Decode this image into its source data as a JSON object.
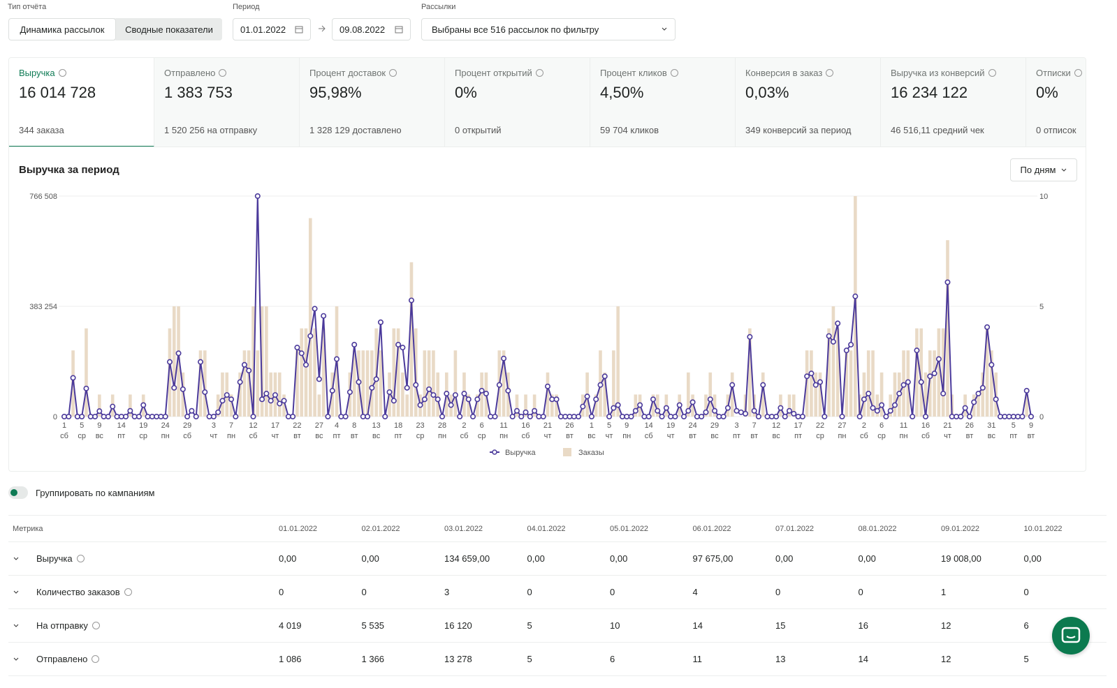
{
  "filters": {
    "report_type": {
      "label": "Тип отчёта",
      "options": [
        "Динамика рассылок",
        "Сводные показатели"
      ]
    },
    "period": {
      "label": "Период",
      "from": "01.01.2022",
      "to": "09.08.2022"
    },
    "mailings": {
      "label": "Рассылки",
      "value": "Выбраны все 516 рассылок по фильтру"
    }
  },
  "metrics": [
    {
      "title": "Выручка",
      "value": "16 014 728",
      "note": "344 заказа"
    },
    {
      "title": "Отправлено",
      "value": "1 383 753",
      "note": "1 520 256 на отправку"
    },
    {
      "title": "Процент доставок",
      "value": "95,98%",
      "note": "1 328 129 доставлено"
    },
    {
      "title": "Процент открытий",
      "value": "0%",
      "note": "0 открытий"
    },
    {
      "title": "Процент кликов",
      "value": "4,50%",
      "note": "59 704 кликов"
    },
    {
      "title": "Конверсия в заказ",
      "value": "0,03%",
      "note": "349 конверсий за период"
    },
    {
      "title": "Выручка из конверсий",
      "value": "16 234 122",
      "note": "46 516,11 средний чек"
    },
    {
      "title": "Отписки",
      "value": "0%",
      "note": "0 отписок"
    }
  ],
  "chart_section": {
    "title": "Выручка за период",
    "group_select": "По дням"
  },
  "chart_data": {
    "type": "combo",
    "categories": [
      [
        "1",
        "сб"
      ],
      null,
      null,
      null,
      [
        "5",
        "ср"
      ],
      null,
      null,
      null,
      [
        "9",
        "вс"
      ],
      null,
      null,
      null,
      null,
      [
        "14",
        "пт"
      ],
      null,
      null,
      null,
      null,
      [
        "19",
        "ср"
      ],
      null,
      null,
      null,
      null,
      [
        "24",
        "пн"
      ],
      null,
      null,
      null,
      null,
      [
        "29",
        "сб"
      ],
      null,
      null,
      null,
      null,
      null,
      [
        "3",
        "чт"
      ],
      null,
      null,
      null,
      [
        "7",
        "пн"
      ],
      null,
      null,
      null,
      null,
      [
        "12",
        "сб"
      ],
      null,
      null,
      null,
      null,
      [
        "17",
        "чт"
      ],
      null,
      null,
      null,
      null,
      [
        "22",
        "вт"
      ],
      null,
      null,
      null,
      null,
      [
        "27",
        "вс"
      ],
      null,
      null,
      null,
      [
        "4",
        "пт"
      ],
      null,
      null,
      null,
      [
        "8",
        "вт"
      ],
      null,
      null,
      null,
      null,
      [
        "13",
        "вс"
      ],
      null,
      null,
      null,
      null,
      [
        "18",
        "пт"
      ],
      null,
      null,
      null,
      null,
      [
        "23",
        "ср"
      ],
      null,
      null,
      null,
      null,
      [
        "28",
        "пн"
      ],
      null,
      null,
      null,
      null,
      [
        "2",
        "сб"
      ],
      null,
      null,
      null,
      [
        "6",
        "ср"
      ],
      null,
      null,
      null,
      null,
      [
        "11",
        "пн"
      ],
      null,
      null,
      null,
      null,
      [
        "16",
        "сб"
      ],
      null,
      null,
      null,
      null,
      [
        "21",
        "чт"
      ],
      null,
      null,
      null,
      null,
      [
        "26",
        "вт"
      ],
      null,
      null,
      null,
      null,
      [
        "1",
        "вс"
      ],
      null,
      null,
      null,
      [
        "5",
        "чт"
      ],
      null,
      null,
      null,
      [
        "9",
        "пн"
      ],
      null,
      null,
      null,
      null,
      [
        "14",
        "сб"
      ],
      null,
      null,
      null,
      null,
      [
        "19",
        "чт"
      ],
      null,
      null,
      null,
      null,
      [
        "24",
        "вт"
      ],
      null,
      null,
      null,
      null,
      [
        "29",
        "вс"
      ],
      null,
      null,
      null,
      null,
      [
        "3",
        "пт"
      ],
      null,
      null,
      null,
      [
        "7",
        "вт"
      ],
      null,
      null,
      null,
      null,
      [
        "12",
        "вс"
      ],
      null,
      null,
      null,
      null,
      [
        "17",
        "пт"
      ],
      null,
      null,
      null,
      null,
      [
        "22",
        "ср"
      ],
      null,
      null,
      null,
      null,
      [
        "27",
        "пн"
      ],
      null,
      null,
      null,
      null,
      [
        "2",
        "сб"
      ],
      null,
      null,
      null,
      [
        "6",
        "ср"
      ],
      null,
      null,
      null,
      null,
      [
        "11",
        "пн"
      ],
      null,
      null,
      null,
      null,
      [
        "16",
        "сб"
      ],
      null,
      null,
      null,
      null,
      [
        "21",
        "чт"
      ],
      null,
      null,
      null,
      null,
      [
        "26",
        "вт"
      ],
      null,
      null,
      null,
      null,
      [
        "31",
        "вс"
      ],
      null,
      null,
      null,
      null,
      [
        "5",
        "пт"
      ],
      null,
      null,
      null,
      [
        "9",
        "вт"
      ]
    ],
    "series": [
      {
        "name": "Выручка",
        "type": "line",
        "color": "#4b3a9b",
        "values": [
          0,
          0,
          134659,
          0,
          0,
          97675,
          0,
          0,
          19008,
          0,
          0,
          35000,
          0,
          0,
          0,
          20000,
          0,
          0,
          40000,
          0,
          0,
          0,
          0,
          0,
          190000,
          100000,
          220000,
          95000,
          0,
          20000,
          0,
          190000,
          85000,
          0,
          0,
          15000,
          55000,
          75000,
          60000,
          0,
          120000,
          180000,
          160000,
          0,
          766508,
          60000,
          80000,
          55000,
          75000,
          45000,
          55000,
          0,
          0,
          240000,
          220000,
          180000,
          280000,
          375000,
          130000,
          350000,
          0,
          90000,
          200000,
          0,
          0,
          85000,
          250000,
          120000,
          0,
          0,
          100000,
          130000,
          328000,
          0,
          85000,
          55000,
          250000,
          240000,
          100000,
          404000,
          110000,
          40000,
          60000,
          95000,
          75000,
          60000,
          0,
          80000,
          40000,
          75000,
          0,
          80000,
          60000,
          0,
          60000,
          90000,
          80000,
          0,
          0,
          110000,
          202000,
          90000,
          0,
          20000,
          0,
          15000,
          0,
          20000,
          0,
          0,
          105000,
          60000,
          60000,
          0,
          0,
          0,
          0,
          0,
          35000,
          70000,
          0,
          60000,
          110000,
          140000,
          0,
          30000,
          40000,
          0,
          0,
          0,
          20000,
          40000,
          0,
          0,
          60000,
          20000,
          0,
          30000,
          0,
          0,
          40000,
          0,
          20000,
          50000,
          0,
          0,
          15000,
          60000,
          20000,
          0,
          0,
          30000,
          110000,
          20000,
          15000,
          10000,
          277000,
          20000,
          0,
          110000,
          0,
          0,
          0,
          30000,
          0,
          20000,
          10000,
          0,
          0,
          140000,
          150000,
          110000,
          120000,
          0,
          280000,
          260000,
          324000,
          0,
          230000,
          250000,
          418000,
          0,
          60000,
          80000,
          30000,
          20000,
          40000,
          0,
          20000,
          40000,
          80000,
          110000,
          120000,
          0,
          230000,
          120000,
          0,
          140000,
          150000,
          200000,
          80000,
          467000,
          0,
          0,
          0,
          30000,
          0,
          50000,
          80000,
          100000,
          311000,
          180000,
          60000,
          0,
          0,
          0,
          0,
          0,
          0,
          90000,
          0
        ]
      },
      {
        "name": "Заказы",
        "type": "bar",
        "axis": "y2",
        "color": "#e9dac6",
        "values": [
          0,
          0,
          3,
          0,
          0,
          4,
          0,
          0,
          1,
          0,
          0,
          1,
          0,
          0,
          0,
          1,
          0,
          0,
          1,
          0,
          0,
          0,
          0,
          0,
          4,
          5,
          5,
          2,
          0,
          0,
          0,
          3,
          3,
          0,
          0,
          1,
          2,
          2,
          1,
          0,
          2,
          3,
          3,
          5,
          3,
          5,
          5,
          2,
          2,
          2,
          1,
          0,
          0,
          3,
          4,
          4,
          9,
          4,
          1,
          4,
          0,
          2,
          5,
          0,
          0,
          2,
          3,
          3,
          3,
          3,
          3,
          4,
          3,
          0,
          2,
          4,
          4,
          2,
          1,
          7,
          4,
          1,
          3,
          3,
          3,
          2,
          0,
          2,
          1,
          3,
          0,
          2,
          1,
          0,
          1,
          2,
          2,
          0,
          0,
          3,
          3,
          2,
          0,
          1,
          0,
          1,
          0,
          1,
          0,
          0,
          2,
          1,
          1,
          0,
          0,
          0,
          0,
          0,
          1,
          2,
          0,
          1,
          3,
          2,
          0,
          3,
          5,
          0,
          0,
          0,
          1,
          1,
          0,
          0,
          1,
          1,
          0,
          1,
          0,
          0,
          1,
          0,
          2,
          1,
          0,
          0,
          1,
          2,
          1,
          0,
          0,
          1,
          2,
          0,
          0,
          1,
          4,
          1,
          0,
          2,
          0,
          0,
          0,
          1,
          0,
          1,
          1,
          0,
          0,
          3,
          3,
          2,
          2,
          0,
          4,
          5,
          4,
          0,
          3,
          3,
          10,
          1,
          2,
          3,
          3,
          1,
          2,
          0,
          1,
          2,
          2,
          3,
          3,
          0,
          4,
          4,
          2,
          3,
          3,
          4,
          4,
          8,
          1,
          0,
          0,
          1,
          0,
          1,
          1,
          2,
          4,
          3,
          2,
          0,
          0,
          0,
          0,
          0,
          0,
          1,
          0
        ]
      }
    ],
    "ylim": [
      0,
      766508
    ],
    "yticks": [
      0,
      {
        "value": 383254,
        "label": "383 254"
      },
      {
        "value": 766508,
        "label": "766 508"
      }
    ],
    "y2lim": [
      0,
      10
    ],
    "y2ticks": [
      0,
      5,
      10
    ],
    "grid": true
  },
  "group_toggle": "Группировать по кампаниям",
  "table": {
    "header": [
      "Метрика",
      "01.01.2022",
      "02.01.2022",
      "03.01.2022",
      "04.01.2022",
      "05.01.2022",
      "06.01.2022",
      "07.01.2022",
      "08.01.2022",
      "09.01.2022",
      "10.01.2022"
    ],
    "rows": [
      [
        "Выручка",
        "0,00",
        "0,00",
        "134 659,00",
        "0,00",
        "0,00",
        "97 675,00",
        "0,00",
        "0,00",
        "19 008,00",
        "0,00"
      ],
      [
        "Количество заказов",
        "0",
        "0",
        "3",
        "0",
        "0",
        "4",
        "0",
        "0",
        "1",
        "0"
      ],
      [
        "На отправку",
        "4 019",
        "5 535",
        "16 120",
        "5",
        "10",
        "14",
        "15",
        "16",
        "12",
        "6"
      ],
      [
        "Отправлено",
        "1 086",
        "1 366",
        "13 278",
        "5",
        "6",
        "11",
        "13",
        "14",
        "12",
        "5"
      ]
    ]
  }
}
